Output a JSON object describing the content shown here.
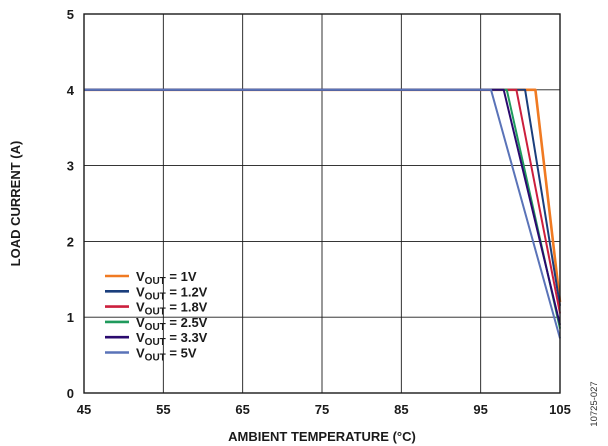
{
  "chart_data": {
    "type": "line",
    "xlabel": "AMBIENT TEMPERATURE (°C)",
    "ylabel": "LOAD CURRENT (A)",
    "xlim": [
      45,
      105
    ],
    "ylim": [
      0,
      5
    ],
    "x_ticks": [
      45,
      55,
      65,
      75,
      85,
      95,
      105
    ],
    "y_ticks": [
      0,
      1,
      2,
      3,
      4,
      5
    ],
    "grid": true,
    "legend_position": "lower-left",
    "figure_id": "10725-027",
    "series": [
      {
        "name": "V_OUT = 1V",
        "label_main": "V",
        "label_sub": "OUT",
        "label_rest": " = 1V",
        "color": "#f07a22",
        "x": [
          45,
          101.9,
          105
        ],
        "y": [
          4.0,
          4.0,
          1.2
        ]
      },
      {
        "name": "V_OUT = 1.2V",
        "label_main": "V",
        "label_sub": "OUT",
        "label_rest": " = 1.2V",
        "color": "#1a3e7c",
        "x": [
          45,
          100.6,
          105
        ],
        "y": [
          4.0,
          4.0,
          1.15
        ]
      },
      {
        "name": "V_OUT = 1.8V",
        "label_main": "V",
        "label_sub": "OUT",
        "label_rest": " = 1.8V",
        "color": "#cc1f3d",
        "x": [
          45,
          99.5,
          105
        ],
        "y": [
          4.0,
          4.0,
          1.05
        ]
      },
      {
        "name": "V_OUT = 2.5V",
        "label_main": "V",
        "label_sub": "OUT",
        "label_rest": " = 2.5V",
        "color": "#1f9a5c",
        "x": [
          45,
          98.3,
          105
        ],
        "y": [
          4.0,
          4.0,
          0.85
        ]
      },
      {
        "name": "V_OUT = 3.3V",
        "label_main": "V",
        "label_sub": "OUT",
        "label_rest": " = 3.3V",
        "color": "#2a0a6e",
        "x": [
          45,
          97.9,
          105
        ],
        "y": [
          4.0,
          4.0,
          0.9
        ]
      },
      {
        "name": "V_OUT = 5V",
        "label_main": "V",
        "label_sub": "OUT",
        "label_rest": " = 5V",
        "color": "#5a73b8",
        "x": [
          45,
          96.3,
          105
        ],
        "y": [
          4.0,
          4.0,
          0.72
        ]
      }
    ]
  }
}
